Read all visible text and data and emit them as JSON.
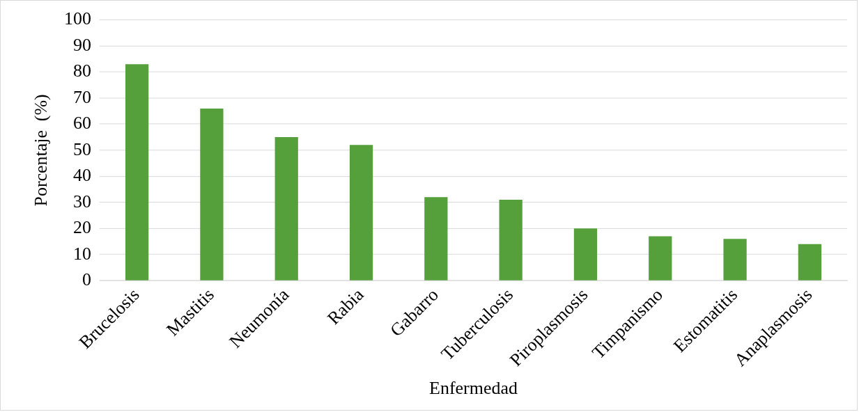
{
  "chart_data": {
    "type": "bar",
    "xlabel": "Enfermedad",
    "ylabel": "Porcentaje  (%)",
    "categories": [
      "Brucelosis",
      "Mastitis",
      "Neumonía",
      "Rabia",
      "Gabarro",
      "Tuberculosis",
      "Piroplasmosis",
      "Timpanismo",
      "Estomatitis",
      "Anaplasmosis"
    ],
    "values": [
      83,
      66,
      55,
      52,
      32,
      31,
      20,
      17,
      16,
      14
    ],
    "color": "#56a03c",
    "ylim": [
      0,
      100
    ],
    "yticks": [
      0,
      10,
      20,
      30,
      40,
      50,
      60,
      70,
      80,
      90,
      100
    ],
    "grid": "y",
    "legend": false
  }
}
